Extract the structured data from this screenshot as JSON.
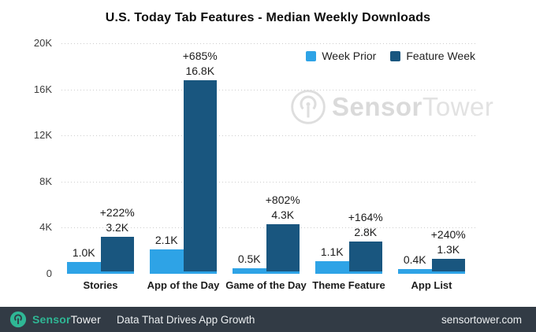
{
  "title": "U.S. Today Tab Features - Median Weekly Downloads",
  "legend": {
    "items": [
      {
        "label": "Week Prior",
        "color": "#2ea3e6"
      },
      {
        "label": "Feature Week",
        "color": "#19567f"
      }
    ]
  },
  "chart_data": {
    "type": "bar",
    "title": "U.S. Today Tab Features - Median Weekly Downloads",
    "categories": [
      "Stories",
      "App of the Day",
      "Game of the Day",
      "Theme Feature",
      "App List"
    ],
    "series": [
      {
        "name": "Week Prior",
        "color": "#2ea3e6",
        "values": [
          1000,
          2100,
          500,
          1100,
          400
        ],
        "labels": [
          "1.0K",
          "2.1K",
          "0.5K",
          "1.1K",
          "0.4K"
        ]
      },
      {
        "name": "Feature Week",
        "color": "#19567f",
        "values": [
          3200,
          16800,
          4300,
          2800,
          1300
        ],
        "labels": [
          "3.2K",
          "16.8K",
          "4.3K",
          "2.8K",
          "1.3K"
        ]
      }
    ],
    "pct_labels": [
      "+222%",
      "+685%",
      "+802%",
      "+164%",
      "+240%"
    ],
    "xlabel": "",
    "ylabel": "",
    "ylim": [
      0,
      20000
    ],
    "yticks": [
      {
        "label": "20K",
        "value": 20000
      },
      {
        "label": "16K",
        "value": 16000
      },
      {
        "label": "12K",
        "value": 12000
      },
      {
        "label": "8K",
        "value": 8000
      },
      {
        "label": "4K",
        "value": 4000
      },
      {
        "label": "0",
        "value": 0
      }
    ],
    "grid": "horizontal-dotted",
    "legend_position": "top-right"
  },
  "watermark": {
    "text_bold": "Sensor",
    "text_light": "Tower"
  },
  "footer": {
    "brand_bold": "Sensor",
    "brand_light": "Tower",
    "tagline": "Data That Drives App Growth",
    "url": "sensortower.com",
    "bg_color": "#323b45",
    "accent_color": "#2fb795"
  }
}
